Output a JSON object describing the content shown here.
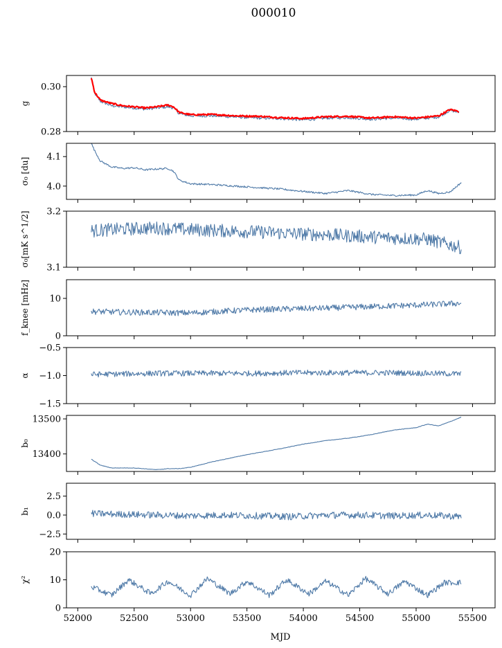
{
  "figure": {
    "title": "000010",
    "xlabel": "MJD"
  },
  "chart_data": [
    {
      "id": "g",
      "type": "line",
      "ylabel": "g",
      "xlim": [
        51900,
        55700
      ],
      "ylim": [
        0.28,
        0.305
      ],
      "yticks": [
        0.28,
        0.3
      ],
      "ytick_labels": [
        "0.28",
        "0.30"
      ],
      "x": [
        52120,
        52150,
        52200,
        52300,
        52400,
        52500,
        52600,
        52700,
        52800,
        52850,
        52900,
        53000,
        53200,
        53400,
        53600,
        53800,
        54000,
        54200,
        54400,
        54600,
        54800,
        55000,
        55200,
        55300,
        55380
      ],
      "series": [
        {
          "y": [
            0.304,
            0.297,
            0.2935,
            0.2915,
            0.291,
            0.2905,
            0.29,
            0.2905,
            0.291,
            0.2905,
            0.288,
            0.287,
            0.287,
            0.2865,
            0.286,
            0.2858,
            0.2852,
            0.286,
            0.2862,
            0.2855,
            0.286,
            0.2855,
            0.2865,
            0.2895,
            0.2885
          ],
          "color": "#4e79a7"
        },
        {
          "y": [
            0.304,
            0.2975,
            0.294,
            0.2925,
            0.2915,
            0.291,
            0.2905,
            0.291,
            0.2918,
            0.291,
            0.2885,
            0.2875,
            0.2876,
            0.287,
            0.2868,
            0.2862,
            0.2858,
            0.2866,
            0.2868,
            0.286,
            0.2866,
            0.286,
            0.287,
            0.2898,
            0.289
          ],
          "color": "#ff0000"
        }
      ]
    },
    {
      "id": "sigma0",
      "type": "line",
      "ylabel": "σ₀ [du]",
      "xlim": [
        51900,
        55700
      ],
      "ylim": [
        3.955,
        4.145
      ],
      "yticks": [
        4.0,
        4.1
      ],
      "ytick_labels": [
        "4.0",
        "4.1"
      ],
      "x": [
        52120,
        52150,
        52200,
        52300,
        52400,
        52500,
        52600,
        52700,
        52800,
        52850,
        52900,
        53000,
        53200,
        53400,
        53600,
        53800,
        54000,
        54200,
        54400,
        54600,
        54800,
        55000,
        55100,
        55200,
        55300,
        55400
      ],
      "series": [
        {
          "y": [
            4.145,
            4.12,
            4.085,
            4.065,
            4.06,
            4.062,
            4.055,
            4.058,
            4.06,
            4.05,
            4.02,
            4.008,
            4.005,
            4.0,
            3.995,
            3.99,
            3.982,
            3.975,
            3.985,
            3.972,
            3.968,
            3.97,
            3.985,
            3.975,
            3.98,
            4.012
          ],
          "color": "#4e79a7"
        }
      ]
    },
    {
      "id": "sigma0_mk",
      "type": "line",
      "ylabel": "σ₀[mK s^1/2]",
      "xlim": [
        51900,
        55700
      ],
      "ylim": [
        3.1,
        3.2
      ],
      "yticks": [
        3.1,
        3.2
      ],
      "ytick_labels": [
        "3.1",
        "3.2"
      ],
      "x": [
        52120,
        52400,
        52700,
        53000,
        53300,
        53600,
        53900,
        54200,
        54500,
        54800,
        55100,
        55400
      ],
      "series": [
        {
          "y": [
            3.165,
            3.168,
            3.17,
            3.167,
            3.165,
            3.163,
            3.16,
            3.158,
            3.155,
            3.152,
            3.15,
            3.135
          ],
          "color": "#4e79a7"
        }
      ]
    },
    {
      "id": "fknee",
      "type": "line",
      "ylabel": "f_knee [mHz]",
      "xlim": [
        51900,
        55700
      ],
      "ylim": [
        0,
        15
      ],
      "yticks": [
        0,
        10
      ],
      "ytick_labels": [
        "0",
        "10"
      ],
      "x": [
        52120,
        52400,
        52700,
        53000,
        53300,
        53600,
        53900,
        54200,
        54500,
        54800,
        55100,
        55400
      ],
      "series": [
        {
          "y": [
            6.5,
            6.3,
            6.2,
            6.1,
            6.6,
            7.0,
            7.2,
            7.4,
            7.7,
            8.0,
            8.3,
            8.7
          ],
          "color": "#4e79a7"
        }
      ]
    },
    {
      "id": "alpha",
      "type": "line",
      "ylabel": "α",
      "xlim": [
        51900,
        55700
      ],
      "ylim": [
        -1.5,
        -0.5
      ],
      "yticks": [
        -1.5,
        -1.0,
        -0.5
      ],
      "ytick_labels": [
        "−1.5",
        "−1.0",
        "−0.5"
      ],
      "x": [
        52120,
        52400,
        52700,
        53000,
        53300,
        53600,
        53900,
        54200,
        54500,
        54800,
        55100,
        55400
      ],
      "series": [
        {
          "y": [
            -0.98,
            -0.97,
            -0.96,
            -0.96,
            -0.96,
            -0.96,
            -0.95,
            -0.95,
            -0.95,
            -0.95,
            -0.96,
            -0.97
          ],
          "color": "#4e79a7"
        }
      ]
    },
    {
      "id": "b0",
      "type": "line",
      "ylabel": "b₀",
      "xlim": [
        51900,
        55700
      ],
      "ylim": [
        13350,
        13510
      ],
      "yticks": [
        13400,
        13500
      ],
      "ytick_labels": [
        "13400",
        "13500"
      ],
      "x": [
        52120,
        52200,
        52300,
        52500,
        52700,
        52800,
        52900,
        53000,
        53200,
        53500,
        53800,
        54000,
        54200,
        54400,
        54600,
        54800,
        55000,
        55100,
        55200,
        55300,
        55400
      ],
      "series": [
        {
          "y": [
            13385,
            13368,
            13360,
            13360,
            13355,
            13358,
            13358,
            13362,
            13378,
            13398,
            13415,
            13428,
            13438,
            13445,
            13455,
            13468,
            13475,
            13485,
            13480,
            13492,
            13505
          ],
          "color": "#4e79a7"
        }
      ]
    },
    {
      "id": "b1",
      "type": "line",
      "ylabel": "b₁",
      "xlim": [
        51900,
        55700
      ],
      "ylim": [
        -3.2,
        4.2
      ],
      "yticks": [
        -2.5,
        0.0,
        2.5
      ],
      "ytick_labels": [
        "−2.5",
        "0.0",
        "2.5"
      ],
      "x": [
        52120,
        52400,
        52700,
        53000,
        53300,
        53600,
        53900,
        54200,
        54500,
        54800,
        55100,
        55400
      ],
      "series": [
        {
          "y": [
            0.2,
            0.1,
            0.0,
            -0.1,
            0.0,
            -0.1,
            -0.2,
            0.0,
            0.0,
            -0.1,
            0.0,
            -0.2
          ],
          "color": "#4e79a7"
        }
      ]
    },
    {
      "id": "chi2",
      "type": "line",
      "ylabel": "χ²",
      "xlim": [
        51900,
        55700
      ],
      "ylim": [
        0,
        20
      ],
      "yticks": [
        0,
        10,
        20
      ],
      "ytick_labels": [
        "0",
        "10",
        "20"
      ],
      "x": [
        52120,
        52300,
        52450,
        52650,
        52800,
        53000,
        53150,
        53350,
        53500,
        53700,
        53850,
        54050,
        54200,
        54400,
        54550,
        54750,
        54900,
        55100,
        55250,
        55400
      ],
      "series": [
        {
          "y": [
            7.5,
            4.5,
            10,
            5,
            9.5,
            4.5,
            10.5,
            5,
            9.5,
            4.5,
            10,
            5,
            9.5,
            4.5,
            10.5,
            5,
            9.5,
            4.5,
            9,
            9
          ],
          "color": "#4e79a7"
        }
      ]
    }
  ],
  "xaxis": {
    "ticks": [
      52000,
      52500,
      53000,
      53500,
      54000,
      54500,
      55000,
      55500
    ],
    "labels": [
      "52000",
      "52500",
      "53000",
      "53500",
      "54000",
      "54500",
      "55000",
      "55500"
    ]
  }
}
